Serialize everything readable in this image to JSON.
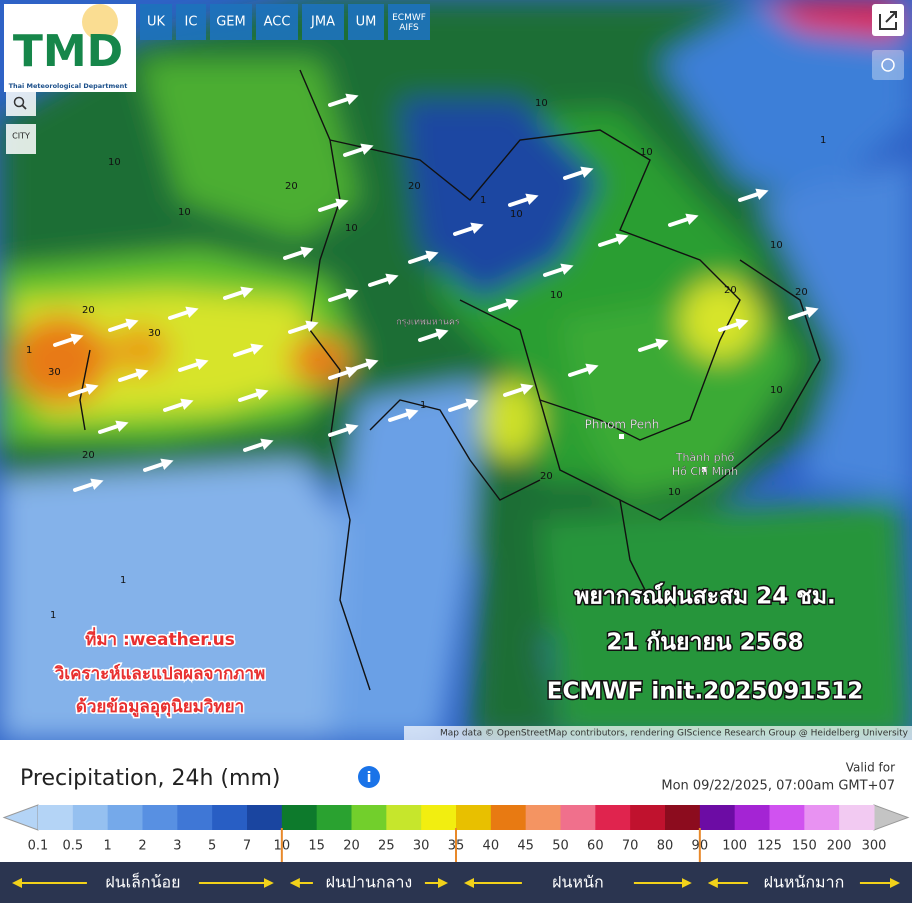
{
  "logo": {
    "title": "TMD",
    "subtitle": "Thai Meteorological Department"
  },
  "models": [
    "UK",
    "IC",
    "GEM",
    "ACC",
    "JMA",
    "UM",
    "ECMWF AIFS"
  ],
  "city_toggle": "CITY",
  "cities": [
    "กรุงเทพมหานคร",
    "Phnom Penh",
    "Thành phố Hồ Chí Minh"
  ],
  "map_labels": [
    "20",
    "30",
    "30",
    "20",
    "10",
    "10",
    "20",
    "10",
    "20",
    "10",
    "10",
    "10",
    "20",
    "20",
    "10",
    "10",
    "1",
    "1",
    "1",
    "1",
    "1",
    "1",
    "10",
    "20",
    "10",
    "1"
  ],
  "overlay": {
    "title": "พยากรณ์ฝนสะสม 24 ชม.",
    "date": "21 กันยายน 2568",
    "model_run": "ECMWF init.2025091512",
    "source": "ที่มา :weather.us",
    "analysis": "วิเคราะห์และแปลผลจากภาพ",
    "analysis_2": "ด้วยข้อมูลอุตุนิยมวิทยา"
  },
  "attribution": "Map data © OpenStreetMap contributors, rendering GIScience Research Group @ Heidelberg University",
  "legend": {
    "title": "Precipitation, 24h (mm)",
    "valid_label": "Valid for",
    "valid_time": "Mon 09/22/2025, 07:00am GMT+07",
    "scale": [
      0.1,
      0.5,
      1,
      2,
      3,
      5,
      7,
      10,
      15,
      20,
      25,
      30,
      35,
      40,
      45,
      50,
      60,
      70,
      80,
      90,
      100,
      125,
      150,
      200,
      300
    ],
    "colors": [
      "#b4d4f6",
      "#95c0f0",
      "#75a9ea",
      "#5890e2",
      "#3f77d6",
      "#285ec4",
      "#1a45a0",
      "#0d7a2c",
      "#2aa230",
      "#72cf2c",
      "#c6e62c",
      "#f2ee10",
      "#e8c000",
      "#e87a12",
      "#f49462",
      "#f0708c",
      "#e0244e",
      "#c0122e",
      "#8c0c1e",
      "#6c0ca4",
      "#a424d4",
      "#d052f0",
      "#e892f2",
      "#f2caf2",
      "#c4c4c4"
    ],
    "categories": [
      "ฝนเล็กน้อย",
      "ฝนปานกลาง",
      "ฝนหนัก",
      "ฝนหนักมาก"
    ]
  }
}
